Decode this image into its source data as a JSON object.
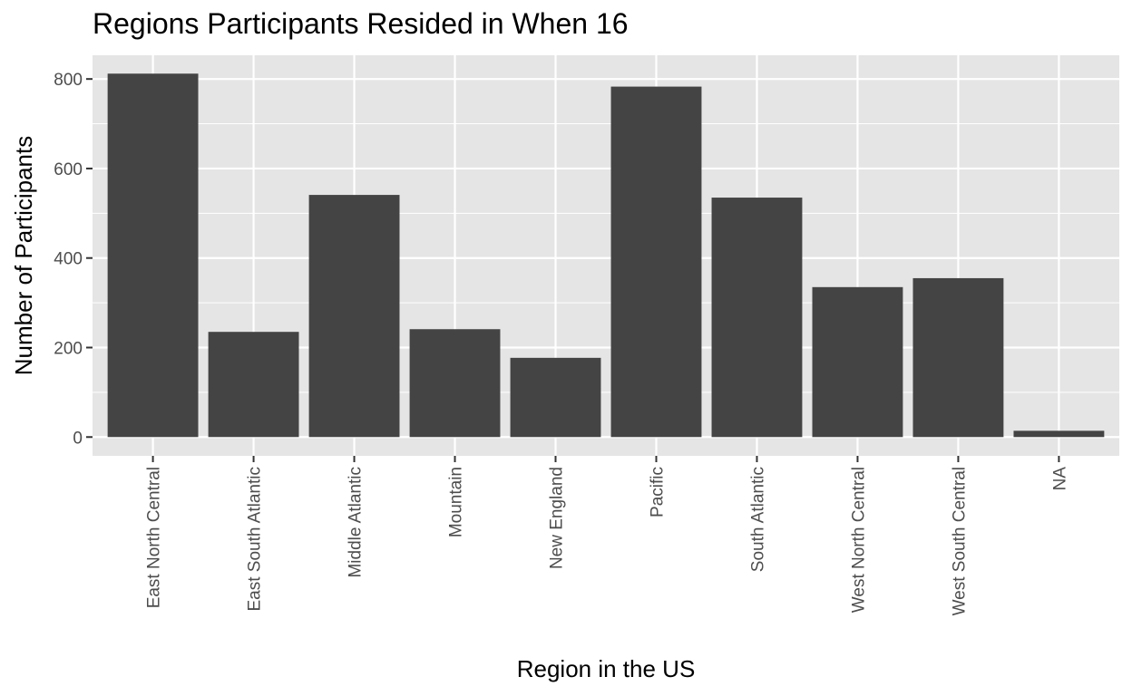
{
  "chart_data": {
    "type": "bar",
    "title": "Regions Participants Resided in When 16",
    "xlabel": "Region in the US",
    "ylabel": "Number of Participants",
    "categories": [
      "East North Central",
      "East South Atlantic",
      "Middle Atlantic",
      "Mountain",
      "New England",
      "Pacific",
      "South Atlantic",
      "West North Central",
      "West South Central",
      "NA"
    ],
    "values": [
      812,
      235,
      541,
      241,
      177,
      783,
      535,
      335,
      355,
      14
    ],
    "ylim": [
      -42,
      853
    ],
    "yticks": [
      0,
      200,
      400,
      600,
      800
    ],
    "grid": true,
    "colors": {
      "panel": "#e5e5e5",
      "bar": "#444444",
      "grid": "#ffffff",
      "tick_text": "#4d4d4d"
    }
  }
}
